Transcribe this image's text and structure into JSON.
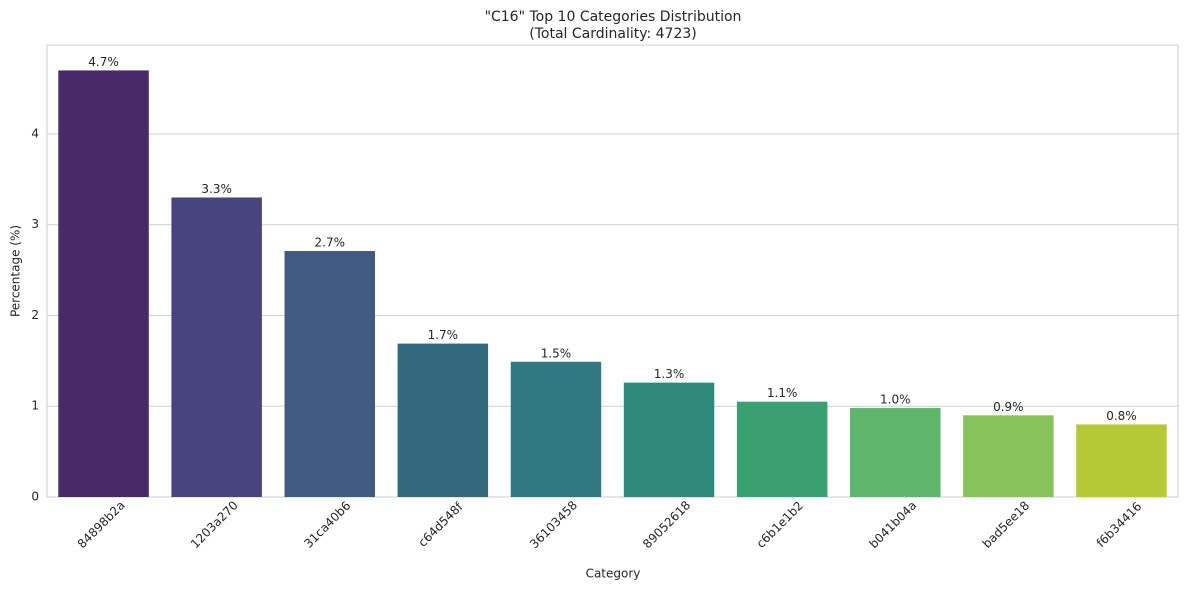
{
  "chart_data": {
    "type": "bar",
    "title": "\"C16\" Top 10 Categories Distribution",
    "subtitle": "(Total Cardinality: 4723)",
    "x_label": "Category",
    "y_label": "Percentage (%)",
    "categories": [
      "84898b2a",
      "1203a270",
      "31ca40b6",
      "c64d548f",
      "36103458",
      "89052618",
      "c6b1e1b2",
      "b041b04a",
      "bad5ee18",
      "f6b34416"
    ],
    "values": [
      4.7,
      3.3,
      2.71,
      1.69,
      1.49,
      1.26,
      1.05,
      0.98,
      0.9,
      0.8
    ],
    "value_labels": [
      "4.7%",
      "3.3%",
      "2.7%",
      "1.7%",
      "1.5%",
      "1.3%",
      "1.1%",
      "1.0%",
      "0.9%",
      "0.8%"
    ],
    "colors": [
      "#482a68",
      "#47457c",
      "#415a81",
      "#316a7f",
      "#2e7a80",
      "#2f8a7c",
      "#3aa072",
      "#5db66b",
      "#88c35a",
      "#b3c935"
    ],
    "ylim": [
      0,
      4.98
    ],
    "yticks": [
      0,
      1,
      2,
      3,
      4
    ],
    "grid": true
  }
}
